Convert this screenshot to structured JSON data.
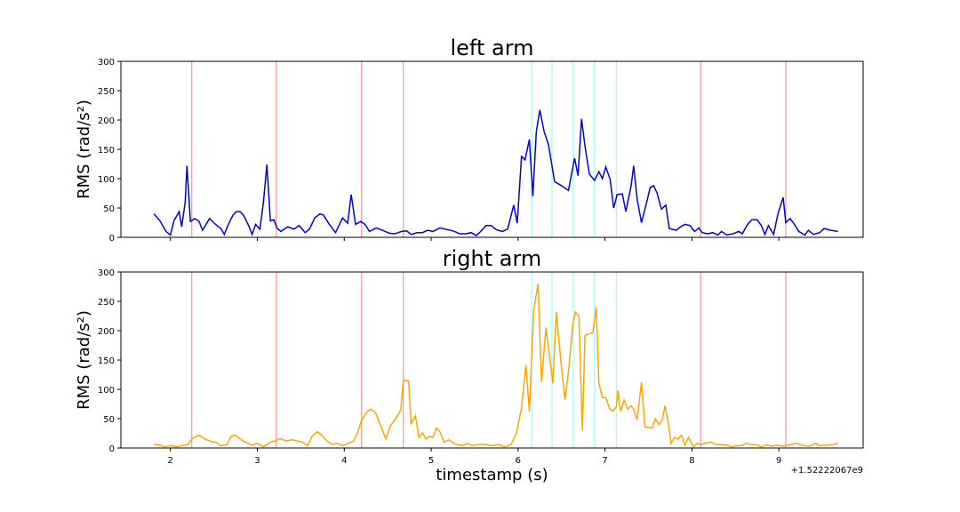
{
  "chart_data": [
    {
      "type": "line",
      "title": "left arm",
      "ylabel": "RMS (rad/s²)",
      "xlim": [
        1.43,
        9.97
      ],
      "ylim": [
        0,
        300
      ],
      "xticks": [
        2,
        3,
        4,
        5,
        6,
        7,
        8,
        9
      ],
      "show_xtick_labels": false,
      "yticks": [
        0,
        50,
        100,
        150,
        200,
        250,
        300
      ],
      "vline_groups": [
        {
          "color": "#f08080",
          "x": [
            2.246,
            3.218,
            4.2,
            4.68,
            8.1,
            9.08
          ]
        },
        {
          "color": "#80ffff",
          "x": [
            6.155,
            6.39,
            6.635,
            6.88,
            7.13
          ]
        }
      ],
      "x": [
        1.81,
        1.88,
        1.95,
        2.0,
        2.04,
        2.1,
        2.13,
        2.17,
        2.19,
        2.23,
        2.28,
        2.33,
        2.37,
        2.45,
        2.52,
        2.58,
        2.62,
        2.66,
        2.72,
        2.76,
        2.8,
        2.84,
        2.9,
        2.94,
        2.98,
        3.03,
        3.07,
        3.11,
        3.15,
        3.19,
        3.23,
        3.27,
        3.35,
        3.42,
        3.48,
        3.55,
        3.6,
        3.66,
        3.72,
        3.76,
        3.82,
        3.9,
        3.98,
        4.04,
        4.08,
        4.13,
        4.19,
        4.24,
        4.29,
        4.37,
        4.44,
        4.52,
        4.58,
        4.66,
        4.72,
        4.77,
        4.84,
        4.9,
        4.96,
        5.02,
        5.1,
        5.16,
        5.22,
        5.27,
        5.33,
        5.4,
        5.46,
        5.52,
        5.57,
        5.63,
        5.69,
        5.75,
        5.82,
        5.88,
        5.95,
        5.99,
        6.04,
        6.08,
        6.13,
        6.17,
        6.21,
        6.25,
        6.3,
        6.35,
        6.42,
        6.5,
        6.58,
        6.65,
        6.69,
        6.73,
        6.77,
        6.82,
        6.88,
        6.93,
        6.97,
        7.01,
        7.06,
        7.1,
        7.14,
        7.2,
        7.24,
        7.3,
        7.33,
        7.37,
        7.42,
        7.48,
        7.52,
        7.56,
        7.6,
        7.65,
        7.7,
        7.74,
        7.82,
        7.87,
        7.92,
        7.98,
        8.03,
        8.08,
        8.12,
        8.18,
        8.24,
        8.3,
        8.34,
        8.4,
        8.47,
        8.54,
        8.58,
        8.64,
        8.69,
        8.75,
        8.8,
        8.84,
        8.88,
        8.94,
        8.99,
        9.05,
        9.08,
        9.13,
        9.18,
        9.23,
        9.3,
        9.34,
        9.4,
        9.47,
        9.52,
        9.6,
        9.68
      ],
      "series": [
        {
          "color": "#0000dd",
          "values": [
            40,
            28,
            10,
            4,
            28,
            44,
            18,
            60,
            122,
            27,
            32,
            27,
            12,
            32,
            22,
            15,
            5,
            20,
            38,
            44,
            44,
            38,
            20,
            5,
            22,
            14,
            60,
            124,
            28,
            30,
            15,
            10,
            18,
            14,
            20,
            8,
            14,
            33,
            40,
            38,
            24,
            8,
            33,
            24,
            73,
            22,
            27,
            22,
            10,
            16,
            12,
            7,
            6,
            10,
            11,
            5,
            8,
            8,
            12,
            10,
            16,
            14,
            12,
            10,
            6,
            6,
            8,
            3,
            10,
            20,
            20,
            13,
            10,
            14,
            55,
            24,
            138,
            132,
            167,
            70,
            180,
            217,
            180,
            158,
            95,
            88,
            80,
            135,
            105,
            202,
            155,
            108,
            97,
            112,
            100,
            120,
            98,
            50,
            73,
            74,
            44,
            87,
            122,
            65,
            25,
            60,
            85,
            88,
            75,
            48,
            55,
            15,
            12,
            18,
            22,
            20,
            10,
            16,
            8,
            6,
            8,
            4,
            10,
            4,
            6,
            10,
            6,
            22,
            30,
            30,
            20,
            5,
            20,
            5,
            40,
            68,
            25,
            32,
            22,
            10,
            4,
            12,
            5,
            8,
            15,
            12,
            10
          ]
        }
      ]
    },
    {
      "type": "line",
      "title": "right arm",
      "ylabel": "RMS (rad/s²)",
      "xlabel": "timestamp (s)",
      "x_offset_label": "+1.52222067e9",
      "xlim": [
        1.43,
        9.97
      ],
      "ylim": [
        0,
        300
      ],
      "xticks": [
        2,
        3,
        4,
        5,
        6,
        7,
        8,
        9
      ],
      "show_xtick_labels": true,
      "yticks": [
        0,
        50,
        100,
        150,
        200,
        250,
        300
      ],
      "vline_groups": [
        {
          "color": "#f08080",
          "x": [
            2.246,
            3.218,
            4.2,
            4.68,
            8.1,
            9.08
          ]
        },
        {
          "color": "#80ffff",
          "x": [
            6.155,
            6.39,
            6.635,
            6.88,
            7.13
          ]
        }
      ],
      "x": [
        1.81,
        1.88,
        1.93,
        2.0,
        2.07,
        2.14,
        2.2,
        2.25,
        2.33,
        2.4,
        2.45,
        2.52,
        2.58,
        2.65,
        2.7,
        2.74,
        2.78,
        2.86,
        2.94,
        3.0,
        3.07,
        3.15,
        3.2,
        3.26,
        3.33,
        3.4,
        3.46,
        3.52,
        3.58,
        3.63,
        3.69,
        3.74,
        3.8,
        3.86,
        3.92,
        3.98,
        4.05,
        4.11,
        4.15,
        4.2,
        4.27,
        4.31,
        4.36,
        4.4,
        4.44,
        4.48,
        4.53,
        4.6,
        4.65,
        4.68,
        4.74,
        4.77,
        4.82,
        4.86,
        4.9,
        4.94,
        4.98,
        5.02,
        5.06,
        5.1,
        5.15,
        5.2,
        5.26,
        5.3,
        5.36,
        5.42,
        5.47,
        5.55,
        5.62,
        5.7,
        5.78,
        5.84,
        5.92,
        5.98,
        6.04,
        6.09,
        6.13,
        6.18,
        6.23,
        6.27,
        6.32,
        6.36,
        6.4,
        6.44,
        6.49,
        6.54,
        6.58,
        6.63,
        6.66,
        6.7,
        6.74,
        6.77,
        6.82,
        6.86,
        6.9,
        6.93,
        6.97,
        7.01,
        7.05,
        7.09,
        7.13,
        7.15,
        7.18,
        7.22,
        7.26,
        7.3,
        7.33,
        7.37,
        7.42,
        7.46,
        7.5,
        7.54,
        7.58,
        7.62,
        7.66,
        7.69,
        7.73,
        7.76,
        7.8,
        7.84,
        7.88,
        7.92,
        7.96,
        8.02,
        8.06,
        8.1,
        8.16,
        8.22,
        8.28,
        8.34,
        8.4,
        8.46,
        8.52,
        8.57,
        8.63,
        8.67,
        8.73,
        8.8,
        8.86,
        8.92,
        8.97,
        9.05,
        9.12,
        9.2,
        9.25,
        9.3,
        9.36,
        9.42,
        9.48,
        9.56,
        9.62,
        9.68
      ],
      "series": [
        {
          "color": "#ffa500",
          "values": [
            6,
            5,
            2,
            4,
            2,
            4,
            6,
            16,
            22,
            15,
            12,
            10,
            4,
            6,
            20,
            22,
            18,
            10,
            5,
            8,
            2,
            10,
            12,
            16,
            12,
            14,
            12,
            10,
            4,
            20,
            28,
            22,
            12,
            6,
            8,
            4,
            8,
            12,
            25,
            48,
            63,
            66,
            60,
            45,
            30,
            15,
            38,
            52,
            65,
            116,
            114,
            42,
            55,
            18,
            26,
            15,
            20,
            18,
            34,
            28,
            10,
            14,
            8,
            6,
            4,
            8,
            4,
            6,
            6,
            4,
            6,
            2,
            6,
            25,
            68,
            142,
            62,
            235,
            280,
            112,
            205,
            160,
            110,
            232,
            152,
            82,
            130,
            210,
            232,
            225,
            30,
            192,
            195,
            196,
            240,
            110,
            86,
            86,
            68,
            63,
            70,
            98,
            62,
            82,
            66,
            72,
            66,
            48,
            112,
            36,
            35,
            34,
            50,
            40,
            48,
            72,
            42,
            8,
            18,
            15,
            22,
            5,
            18,
            2,
            8,
            6,
            8,
            10,
            6,
            6,
            5,
            2,
            4,
            4,
            8,
            6,
            6,
            2,
            5,
            3,
            5,
            3,
            5,
            8,
            6,
            4,
            3,
            8,
            4,
            5,
            6,
            8
          ]
        }
      ]
    }
  ]
}
